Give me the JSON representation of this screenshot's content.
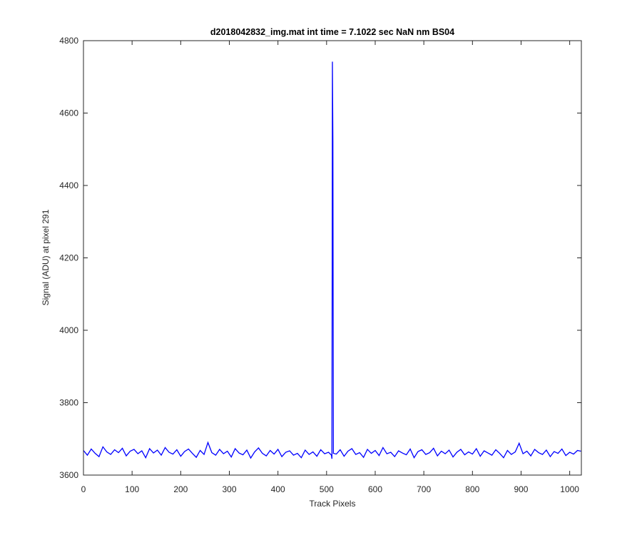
{
  "chart_data": {
    "type": "line",
    "title": "d2018042832_img.mat int time = 7.1022 sec  NaN nm BS04",
    "xlabel": "Track Pixels",
    "ylabel": "Signal (ADU) at pixel 291",
    "xlim": [
      0,
      1024
    ],
    "ylim": [
      3600,
      4800
    ],
    "xticks": [
      0,
      100,
      200,
      300,
      400,
      500,
      600,
      700,
      800,
      900,
      1000
    ],
    "yticks": [
      3600,
      3800,
      4000,
      4200,
      4400,
      4600,
      4800
    ],
    "series": [
      {
        "color": "#0000ff",
        "x": [
          0,
          8,
          16,
          24,
          32,
          40,
          48,
          56,
          64,
          72,
          80,
          88,
          96,
          104,
          112,
          120,
          128,
          136,
          144,
          152,
          160,
          168,
          176,
          184,
          192,
          200,
          208,
          216,
          224,
          232,
          240,
          248,
          256,
          264,
          272,
          280,
          288,
          296,
          304,
          312,
          320,
          328,
          336,
          344,
          352,
          360,
          368,
          376,
          384,
          392,
          400,
          408,
          416,
          424,
          432,
          440,
          448,
          456,
          464,
          472,
          480,
          488,
          496,
          504,
          510,
          511,
          512,
          513,
          514,
          520,
          528,
          536,
          544,
          552,
          560,
          568,
          576,
          584,
          592,
          600,
          608,
          616,
          624,
          632,
          640,
          648,
          656,
          664,
          672,
          680,
          688,
          696,
          704,
          712,
          720,
          728,
          736,
          744,
          752,
          760,
          768,
          776,
          784,
          792,
          800,
          808,
          816,
          824,
          832,
          840,
          848,
          856,
          864,
          872,
          880,
          888,
          896,
          904,
          912,
          920,
          928,
          936,
          944,
          952,
          960,
          968,
          976,
          984,
          992,
          1000,
          1008,
          1016,
          1023
        ],
        "values": [
          3668,
          3655,
          3672,
          3660,
          3651,
          3678,
          3664,
          3657,
          3670,
          3662,
          3674,
          3653,
          3666,
          3671,
          3659,
          3667,
          3648,
          3673,
          3661,
          3669,
          3655,
          3676,
          3663,
          3658,
          3670,
          3652,
          3665,
          3672,
          3660,
          3649,
          3668,
          3657,
          3690,
          3662,
          3655,
          3671,
          3659,
          3666,
          3650,
          3673,
          3661,
          3656,
          3669,
          3647,
          3664,
          3675,
          3660,
          3653,
          3668,
          3658,
          3671,
          3651,
          3663,
          3667,
          3655,
          3660,
          3648,
          3669,
          3657,
          3664,
          3652,
          3670,
          3659,
          3663,
          3655,
          3645,
          4742,
          4522,
          3660,
          3658,
          3670,
          3652,
          3666,
          3673,
          3657,
          3662,
          3649,
          3671,
          3660,
          3668,
          3654,
          3676,
          3659,
          3663,
          3651,
          3667,
          3661,
          3656,
          3672,
          3648,
          3665,
          3670,
          3657,
          3662,
          3674,
          3653,
          3666,
          3659,
          3669,
          3650,
          3663,
          3671,
          3656,
          3664,
          3658,
          3673,
          3652,
          3667,
          3661,
          3655,
          3670,
          3660,
          3648,
          3668,
          3657,
          3664,
          3688,
          3659,
          3666,
          3653,
          3671,
          3662,
          3657,
          3669,
          3651,
          3665,
          3660,
          3672,
          3654,
          3663,
          3658,
          3668,
          3666
        ]
      }
    ]
  }
}
